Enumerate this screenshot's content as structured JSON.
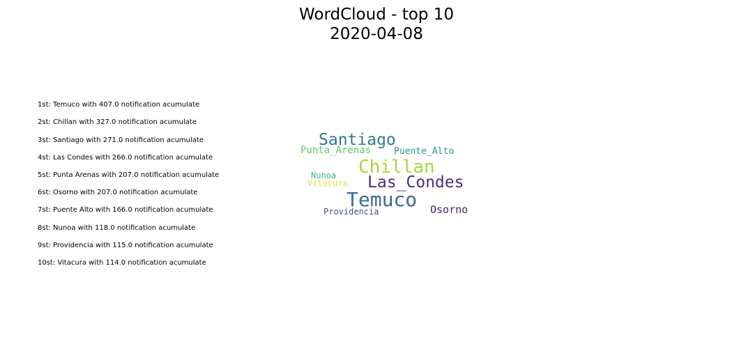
{
  "title": "WordCloud - top 10",
  "subtitle": "2020-04-08",
  "ranking": [
    "1st: Temuco with 407.0 notification acumulate",
    "2st: Chillan with 327.0 notification acumulate",
    "3st: Santiago with 271.0 notification acumulate",
    "4st: Las Condes with 266.0 notification acumulate",
    "5st: Punta Arenas with 207.0 notification acumulate",
    "6st: Osorno with 207.0 notification acumulate",
    "7st: Puente Alto with 166.0 notification acumulate",
    "8st: Nunoa with 118.0 notification acumulate",
    "9st: Providencia with 115.0 notification acumulate",
    "10st: Vitacura with 114.0 notification acumulate"
  ],
  "chart_data": {
    "type": "wordcloud",
    "title": "WordCloud - top 10",
    "subtitle": "2020-04-08",
    "words": [
      {
        "text": "Temuco",
        "value": 407.0,
        "color": "#3b6a8f"
      },
      {
        "text": "Chillan",
        "value": 327.0,
        "color": "#a3da3a"
      },
      {
        "text": "Santiago",
        "value": 271.0,
        "color": "#33788d"
      },
      {
        "text": "Las_Condes",
        "value": 266.0,
        "color": "#4a2f78"
      },
      {
        "text": "Punta_Arenas",
        "value": 207.0,
        "color": "#5ec76a"
      },
      {
        "text": "Osorno",
        "value": 207.0,
        "color": "#4b1f63"
      },
      {
        "text": "Puente_Alto",
        "value": 166.0,
        "color": "#2a9a8e"
      },
      {
        "text": "Nunoa",
        "value": 118.0,
        "color": "#35b48a"
      },
      {
        "text": "Providencia",
        "value": 115.0,
        "color": "#424f8e"
      },
      {
        "text": "Vitacura",
        "value": 114.0,
        "color": "#d6e33a"
      }
    ]
  }
}
